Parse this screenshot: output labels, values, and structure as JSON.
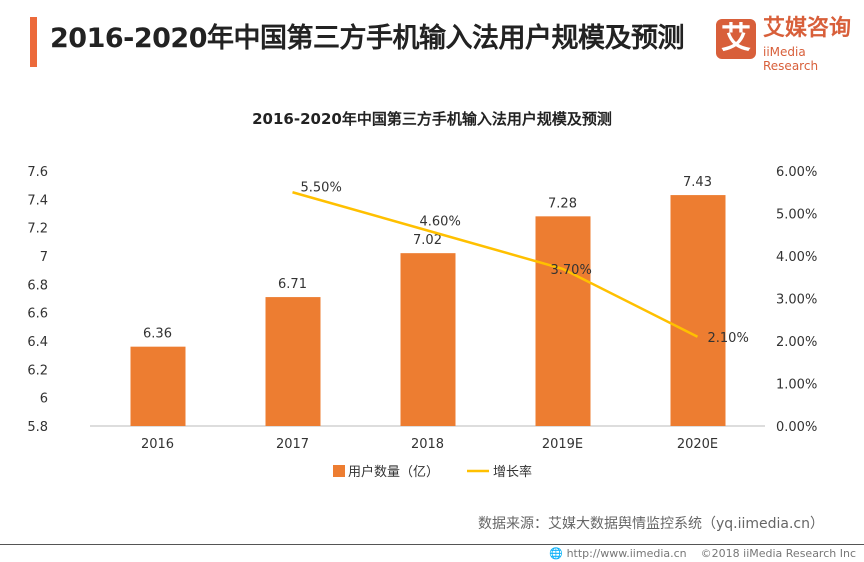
{
  "header": {
    "title": "2016-2020年中国第三方手机输入法用户规模及预测",
    "logo_mark": "艾",
    "logo_cn": "艾媒咨询",
    "logo_en": "iiMedia Research"
  },
  "chart_data": {
    "type": "bar+line",
    "title": "2016-2020年中国第三方手机输入法用户规模及预测",
    "categories": [
      "2016",
      "2017",
      "2018",
      "2019E",
      "2020E"
    ],
    "series": [
      {
        "name": "用户数量（亿）",
        "type": "bar",
        "color": "#ed7d31",
        "values": [
          6.36,
          6.71,
          7.02,
          7.28,
          7.43
        ],
        "labels": [
          "6.36",
          "6.71",
          "7.02",
          "7.28",
          "7.43"
        ]
      },
      {
        "name": "增长率",
        "type": "line",
        "color": "#ffc000",
        "axis": "right",
        "values": [
          null,
          5.5,
          4.6,
          3.7,
          2.1
        ],
        "labels": [
          "",
          "5.50%",
          "4.60%",
          "3.70%",
          "2.10%"
        ]
      }
    ],
    "y_left": {
      "range": [
        5.8,
        7.6
      ],
      "ticks": [
        "5.8",
        "6",
        "6.2",
        "6.4",
        "6.6",
        "6.8",
        "7",
        "7.2",
        "7.4",
        "7.6"
      ]
    },
    "y_right": {
      "range": [
        0,
        6
      ],
      "ticks": [
        "0.00%",
        "1.00%",
        "2.00%",
        "3.00%",
        "4.00%",
        "5.00%",
        "6.00%"
      ]
    },
    "grid": false,
    "legend": "bottom"
  },
  "source": "数据来源：艾媒大数据舆情监控系统（yq.iimedia.cn）",
  "footer": {
    "url": "http://www.iimedia.cn",
    "copyright": "©2018  iiMedia Research  Inc"
  }
}
